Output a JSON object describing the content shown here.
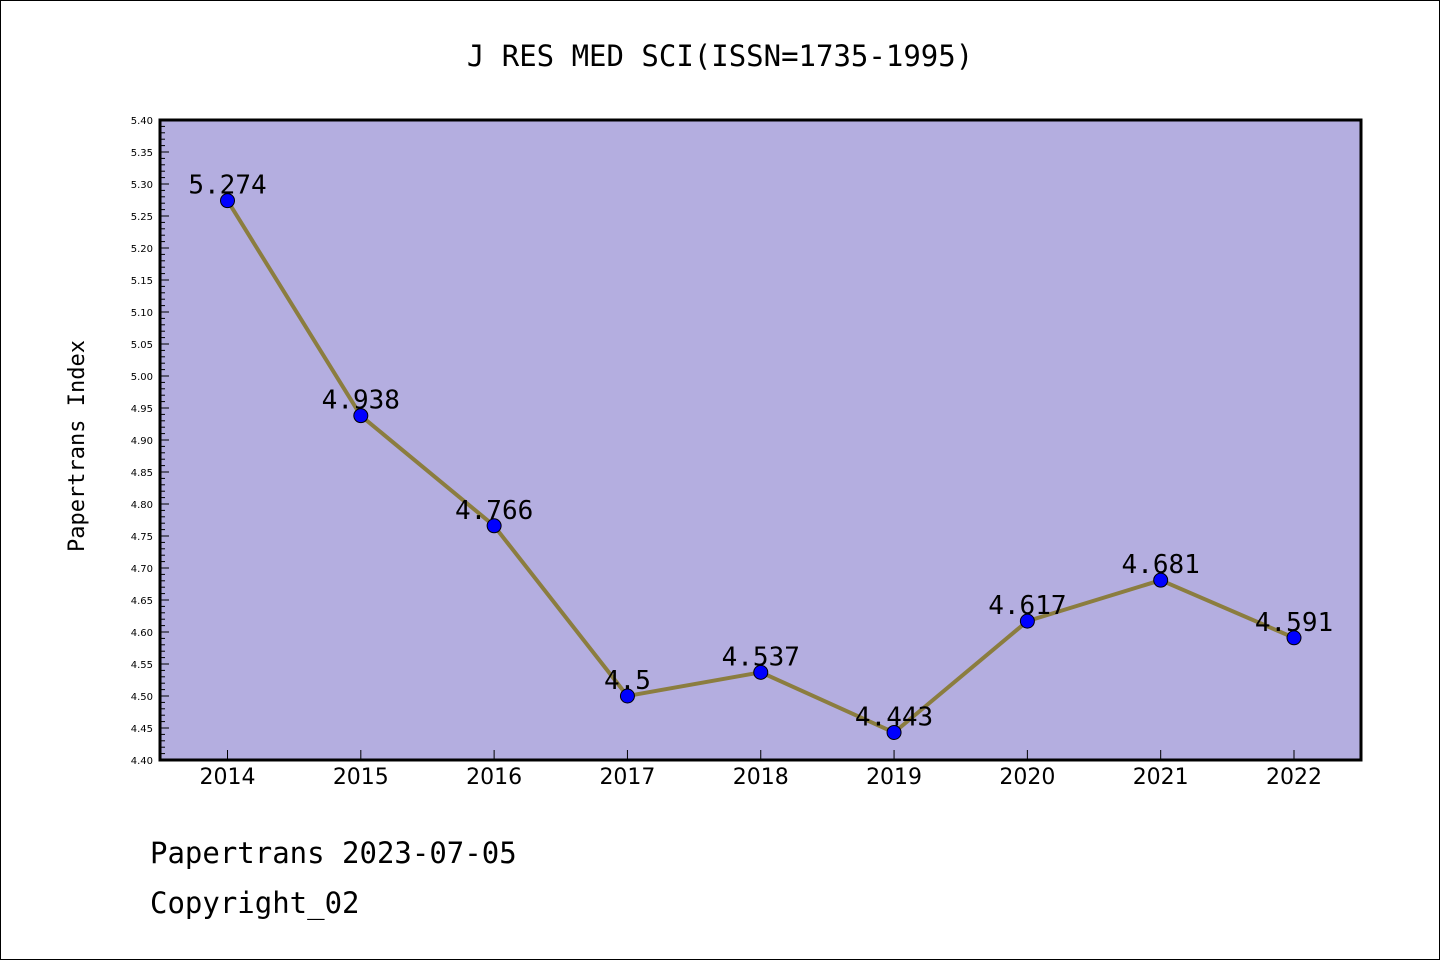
{
  "chart_data": {
    "type": "line",
    "title": "J RES MED SCI(ISSN=1735-1995)",
    "xlabel": "",
    "ylabel": "Papertrans Index",
    "categories": [
      "2014",
      "2015",
      "2016",
      "2017",
      "2018",
      "2019",
      "2020",
      "2021",
      "2022"
    ],
    "values": [
      5.274,
      4.938,
      4.766,
      4.5,
      4.537,
      4.443,
      4.617,
      4.681,
      4.591
    ],
    "data_labels": [
      "5.274",
      "4.938",
      "4.766",
      "4.5",
      "4.537",
      "4.443",
      "4.617",
      "4.681",
      "4.591"
    ],
    "ylim": [
      4.4,
      5.4
    ],
    "yticks": [
      "4.40",
      "4.45",
      "4.50",
      "4.55",
      "4.60",
      "4.65",
      "4.70",
      "4.75",
      "4.80",
      "4.85",
      "4.90",
      "4.95",
      "5.00",
      "5.05",
      "5.10",
      "5.15",
      "5.20",
      "5.25",
      "5.30",
      "5.35",
      "5.40"
    ],
    "grid": false,
    "legend": "none",
    "colors": {
      "plot_background": "#b4aee0",
      "line": "#8b7d3f",
      "marker": "#0000ff"
    }
  },
  "footer": {
    "line1": "Papertrans 2023-07-05",
    "line2": "Copyright_02"
  }
}
